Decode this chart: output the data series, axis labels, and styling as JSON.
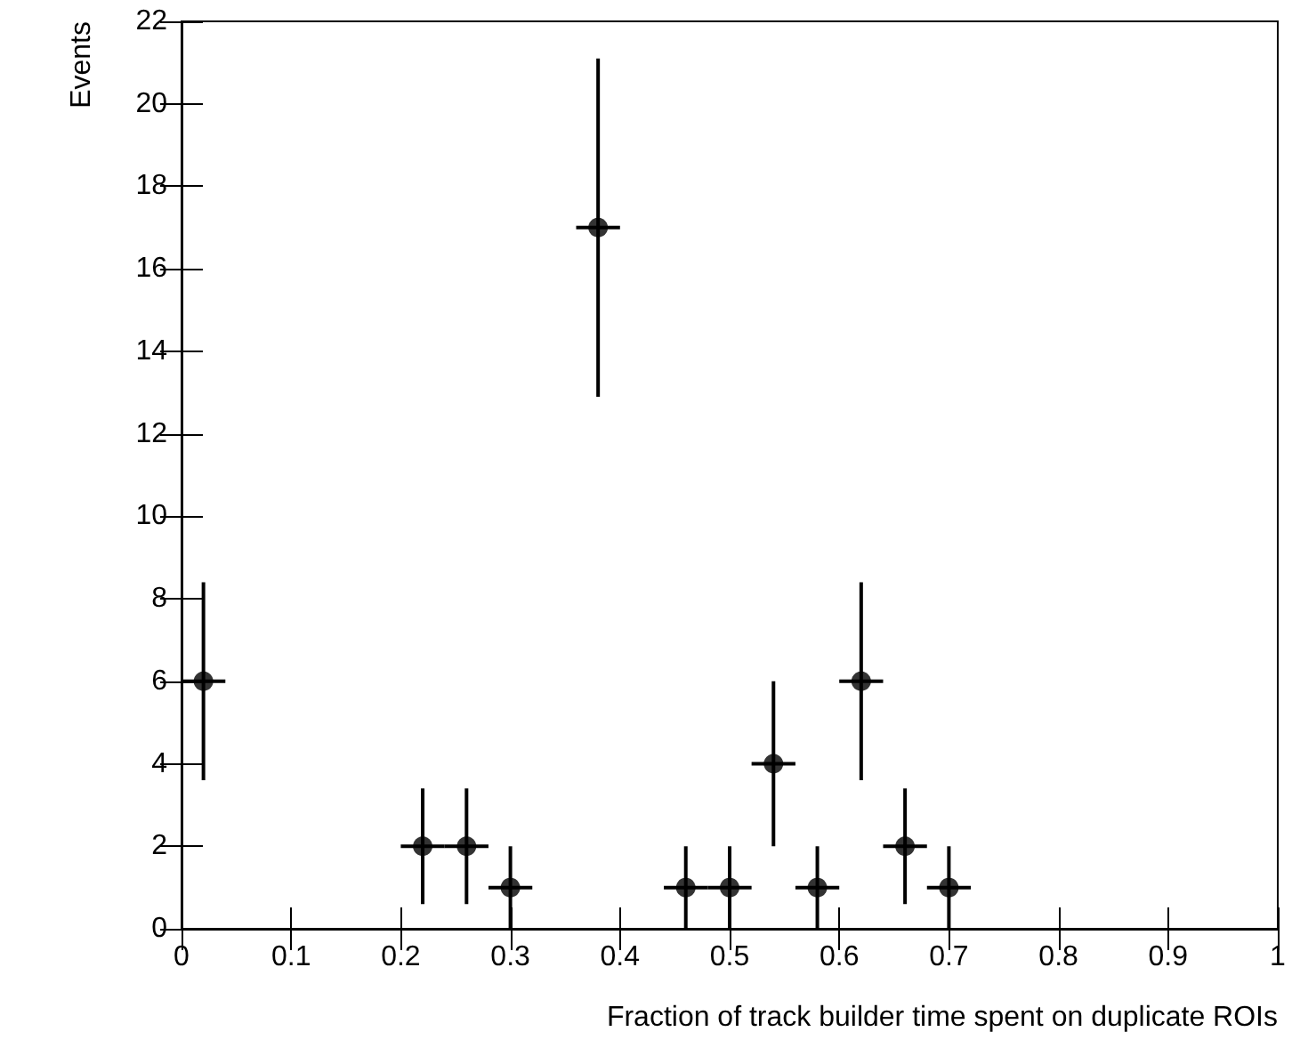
{
  "chart_data": {
    "type": "scatter",
    "xlabel": "Fraction of track builder time spent on duplicate ROIs",
    "ylabel": "Events",
    "x": [
      0.02,
      0.22,
      0.26,
      0.3,
      0.38,
      0.46,
      0.5,
      0.54,
      0.58,
      0.62,
      0.66,
      0.7
    ],
    "series": [
      {
        "color": "#000000",
        "values": [
          6,
          2,
          2,
          1,
          17,
          1,
          1,
          4,
          1,
          6,
          2,
          1
        ],
        "errors": [
          2.4,
          1.4,
          1.4,
          1,
          4.1,
          1,
          1,
          2,
          1,
          2.4,
          1.4,
          1
        ],
        "xerrors": [
          0.02,
          0.02,
          0.02,
          0.02,
          0.02,
          0.02,
          0.02,
          0.02,
          0.02,
          0.02,
          0.02,
          0.02
        ]
      }
    ],
    "xlim": [
      0,
      1
    ],
    "xticks": [
      0,
      0.1,
      0.2,
      0.3,
      0.4,
      0.5,
      0.6,
      0.7,
      0.8,
      0.9,
      1
    ],
    "ylim": [
      0,
      22
    ],
    "yticks": [
      0,
      2,
      4,
      6,
      8,
      10,
      12,
      14,
      16,
      18,
      20,
      22
    ],
    "marker": "circle",
    "grid": false
  }
}
